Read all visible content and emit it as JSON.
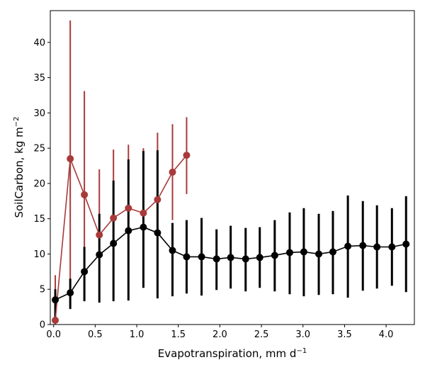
{
  "chart_data": {
    "type": "line",
    "xlabel": "Evapotranspiration,  mm d",
    "xlabel_sup": "−1",
    "ylabel": "SoilCarbon,  kg m",
    "ylabel_sup": "−2",
    "xlim": [
      -0.04,
      4.34
    ],
    "ylim": [
      0,
      44.5
    ],
    "xticks": [
      0.0,
      0.5,
      1.0,
      1.5,
      2.0,
      2.5,
      3.0,
      3.5,
      4.0
    ],
    "xtick_labels": [
      "0.0",
      "0.5",
      "1.0",
      "1.5",
      "2.0",
      "2.5",
      "3.0",
      "3.5",
      "4.0"
    ],
    "yticks": [
      0,
      5,
      10,
      15,
      20,
      25,
      30,
      35,
      40
    ],
    "ytick_labels": [
      "0",
      "5",
      "10",
      "15",
      "20",
      "25",
      "30",
      "35",
      "40"
    ],
    "grid": false,
    "legend": "none",
    "series": [
      {
        "color": "#a83a3a",
        "x": [
          0.02,
          0.2,
          0.37,
          0.55,
          0.72,
          0.9,
          1.08,
          1.25,
          1.43,
          1.6
        ],
        "y": [
          0.6,
          23.5,
          18.4,
          12.7,
          15.1,
          16.5,
          15.8,
          17.7,
          21.6,
          24.0
        ],
        "err_low": [
          0.0,
          4.0,
          3.6,
          3.2,
          5.5,
          7.5,
          6.5,
          8.2,
          14.8,
          18.5
        ],
        "err_high": [
          7.0,
          43.1,
          33.1,
          22.0,
          24.8,
          25.5,
          25.0,
          27.2,
          28.4,
          29.4
        ]
      },
      {
        "color": "#000000",
        "x": [
          0.02,
          0.2,
          0.37,
          0.55,
          0.72,
          0.9,
          1.08,
          1.25,
          1.43,
          1.6,
          1.78,
          1.96,
          2.13,
          2.31,
          2.48,
          2.66,
          2.84,
          3.01,
          3.19,
          3.36,
          3.54,
          3.72,
          3.89,
          4.07,
          4.24
        ],
        "y": [
          3.5,
          4.5,
          7.5,
          9.9,
          11.5,
          13.3,
          13.8,
          13.0,
          10.5,
          9.6,
          9.6,
          9.3,
          9.5,
          9.3,
          9.5,
          9.8,
          10.2,
          10.3,
          10.0,
          10.3,
          11.1,
          11.2,
          11.0,
          11.0,
          11.4
        ],
        "err_low": [
          1.0,
          2.2,
          3.3,
          3.1,
          3.3,
          3.4,
          5.2,
          3.7,
          4.0,
          4.4,
          4.1,
          4.9,
          5.1,
          4.7,
          5.2,
          4.7,
          4.3,
          4.0,
          4.2,
          4.3,
          3.8,
          4.8,
          5.1,
          5.5,
          4.6
        ],
        "err_high": [
          5.0,
          6.5,
          11.0,
          15.7,
          20.4,
          23.4,
          24.6,
          24.7,
          14.4,
          14.8,
          15.1,
          13.5,
          14.0,
          13.7,
          13.8,
          14.8,
          15.9,
          16.5,
          15.7,
          16.1,
          18.3,
          17.5,
          16.9,
          16.5,
          18.2
        ]
      }
    ]
  }
}
